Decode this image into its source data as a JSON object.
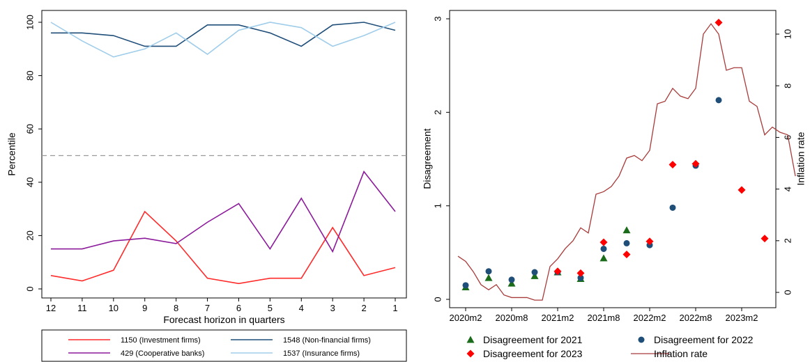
{
  "chart_data": [
    {
      "type": "line",
      "xlabel": "Forecast horizon in quarters",
      "ylabel": "Percentile",
      "x": [
        12,
        11,
        10,
        9,
        8,
        7,
        6,
        5,
        4,
        3,
        2,
        1
      ],
      "xlim": [
        12,
        1
      ],
      "ylim": [
        0,
        100
      ],
      "yticks": [
        0,
        20,
        40,
        60,
        80,
        100
      ],
      "reference_line": 50,
      "legend_position": "bottom",
      "series": [
        {
          "name": "1150 (Investment firms)",
          "color": "#ff2a2a",
          "values": [
            5,
            3,
            7,
            29,
            18,
            4,
            2,
            4,
            4,
            23,
            5,
            8
          ]
        },
        {
          "name": "1548 (Non-financial firms)",
          "color": "#1f4e79",
          "values": [
            96,
            96,
            95,
            91,
            91,
            99,
            99,
            96,
            91,
            99,
            100,
            97
          ]
        },
        {
          "name": "429 (Cooperative banks)",
          "color": "#8b1a9b",
          "values": [
            15,
            15,
            18,
            19,
            17,
            25,
            32,
            15,
            34,
            14,
            44,
            29
          ]
        },
        {
          "name": "1537 (Insurance firms)",
          "color": "#9fcdea",
          "values": [
            100,
            93,
            87,
            90,
            96,
            88,
            97,
            100,
            98,
            91,
            95,
            100
          ]
        }
      ]
    },
    {
      "type": "scatter",
      "ylabel": "Disagreement",
      "y2label": "Inflation rate",
      "xticks": [
        "2020m2",
        "2020m8",
        "2021m2",
        "2021m8",
        "2022m2",
        "2022m8",
        "2023m2"
      ],
      "ylim": [
        0,
        3
      ],
      "yticks": [
        0,
        1,
        2,
        3
      ],
      "y2lim": [
        -0.5,
        10.8
      ],
      "y2ticks": [
        0,
        2,
        4,
        6,
        8,
        10
      ],
      "legend_position": "bottom",
      "series": [
        {
          "name": "Disagreement for 2021",
          "marker": "triangle",
          "color": "#1a6b1a",
          "points": [
            [
              "2020m2",
              0.13
            ],
            [
              "2020m5",
              0.23
            ],
            [
              "2020m8",
              0.17
            ],
            [
              "2020m11",
              0.25
            ],
            [
              "2021m2",
              0.29
            ],
            [
              "2021m5",
              0.22
            ],
            [
              "2021m8",
              0.44
            ],
            [
              "2021m11",
              0.74
            ]
          ]
        },
        {
          "name": "Disagreement for 2022",
          "marker": "circle",
          "color": "#1f4e79",
          "points": [
            [
              "2020m2",
              0.15
            ],
            [
              "2020m5",
              0.3
            ],
            [
              "2020m8",
              0.21
            ],
            [
              "2020m11",
              0.29
            ],
            [
              "2021m2",
              0.29
            ],
            [
              "2021m5",
              0.23
            ],
            [
              "2021m8",
              0.54
            ],
            [
              "2021m11",
              0.6
            ],
            [
              "2022m2",
              0.58
            ],
            [
              "2022m5",
              0.98
            ],
            [
              "2022m8",
              1.43
            ],
            [
              "2022m11",
              2.13
            ]
          ]
        },
        {
          "name": "Disagreement for 2023",
          "marker": "diamond",
          "color": "#ff0000",
          "points": [
            [
              "2021m2",
              0.3
            ],
            [
              "2021m5",
              0.28
            ],
            [
              "2021m8",
              0.61
            ],
            [
              "2021m11",
              0.48
            ],
            [
              "2022m2",
              0.62
            ],
            [
              "2022m5",
              1.44
            ],
            [
              "2022m8",
              1.45
            ],
            [
              "2022m11",
              2.96
            ],
            [
              "2023m2",
              1.17
            ],
            [
              "2023m5",
              0.65
            ]
          ]
        },
        {
          "name": "Inflation rate",
          "marker": "line",
          "color": "#a83a3a",
          "axis": "y2",
          "start": "2020m1",
          "values": [
            1.4,
            1.2,
            0.8,
            0.3,
            0.1,
            0.3,
            -0.1,
            -0.2,
            -0.2,
            -0.2,
            -0.3,
            -0.3,
            1.0,
            1.3,
            1.7,
            2.0,
            2.5,
            2.3,
            3.8,
            3.9,
            4.1,
            4.5,
            5.2,
            5.3,
            5.1,
            5.5,
            7.3,
            7.4,
            7.9,
            7.6,
            7.5,
            7.9,
            10.0,
            10.4,
            10.0,
            8.6,
            8.7,
            8.7,
            7.4,
            7.2,
            6.1,
            6.4,
            6.2,
            6.1,
            4.5
          ]
        }
      ]
    }
  ]
}
